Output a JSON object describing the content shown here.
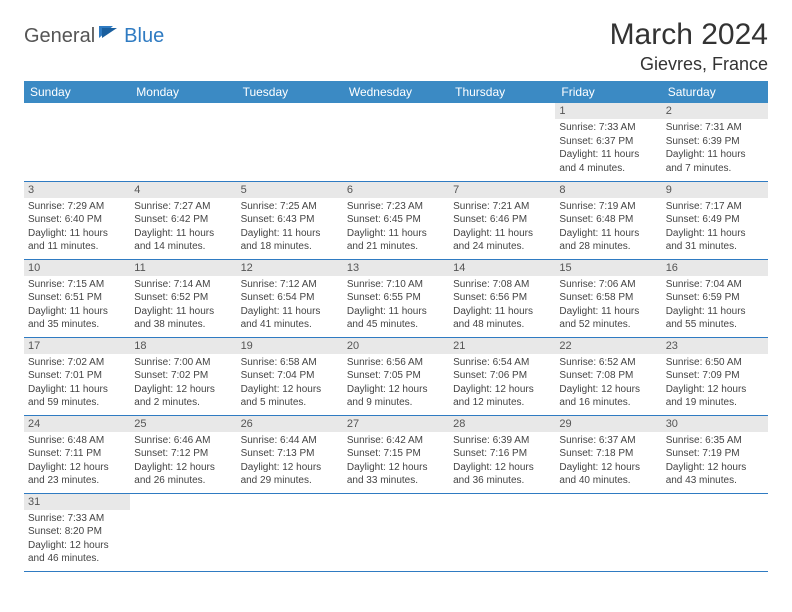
{
  "logo": {
    "part1": "General",
    "part2": "Blue"
  },
  "title": "March 2024",
  "location": "Gievres, France",
  "colors": {
    "header_bg": "#3b8ac4",
    "header_text": "#ffffff",
    "daynum_bg": "#e8e8e8",
    "row_border": "#2f7bc2",
    "title_color": "#333333",
    "body_text": "#444444"
  },
  "weekdays": [
    "Sunday",
    "Monday",
    "Tuesday",
    "Wednesday",
    "Thursday",
    "Friday",
    "Saturday"
  ],
  "weeks": [
    [
      {
        "empty": true
      },
      {
        "empty": true
      },
      {
        "empty": true
      },
      {
        "empty": true
      },
      {
        "empty": true
      },
      {
        "num": "1",
        "sunrise": "Sunrise: 7:33 AM",
        "sunset": "Sunset: 6:37 PM",
        "daylight": "Daylight: 11 hours and 4 minutes."
      },
      {
        "num": "2",
        "sunrise": "Sunrise: 7:31 AM",
        "sunset": "Sunset: 6:39 PM",
        "daylight": "Daylight: 11 hours and 7 minutes."
      }
    ],
    [
      {
        "num": "3",
        "sunrise": "Sunrise: 7:29 AM",
        "sunset": "Sunset: 6:40 PM",
        "daylight": "Daylight: 11 hours and 11 minutes."
      },
      {
        "num": "4",
        "sunrise": "Sunrise: 7:27 AM",
        "sunset": "Sunset: 6:42 PM",
        "daylight": "Daylight: 11 hours and 14 minutes."
      },
      {
        "num": "5",
        "sunrise": "Sunrise: 7:25 AM",
        "sunset": "Sunset: 6:43 PM",
        "daylight": "Daylight: 11 hours and 18 minutes."
      },
      {
        "num": "6",
        "sunrise": "Sunrise: 7:23 AM",
        "sunset": "Sunset: 6:45 PM",
        "daylight": "Daylight: 11 hours and 21 minutes."
      },
      {
        "num": "7",
        "sunrise": "Sunrise: 7:21 AM",
        "sunset": "Sunset: 6:46 PM",
        "daylight": "Daylight: 11 hours and 24 minutes."
      },
      {
        "num": "8",
        "sunrise": "Sunrise: 7:19 AM",
        "sunset": "Sunset: 6:48 PM",
        "daylight": "Daylight: 11 hours and 28 minutes."
      },
      {
        "num": "9",
        "sunrise": "Sunrise: 7:17 AM",
        "sunset": "Sunset: 6:49 PM",
        "daylight": "Daylight: 11 hours and 31 minutes."
      }
    ],
    [
      {
        "num": "10",
        "sunrise": "Sunrise: 7:15 AM",
        "sunset": "Sunset: 6:51 PM",
        "daylight": "Daylight: 11 hours and 35 minutes."
      },
      {
        "num": "11",
        "sunrise": "Sunrise: 7:14 AM",
        "sunset": "Sunset: 6:52 PM",
        "daylight": "Daylight: 11 hours and 38 minutes."
      },
      {
        "num": "12",
        "sunrise": "Sunrise: 7:12 AM",
        "sunset": "Sunset: 6:54 PM",
        "daylight": "Daylight: 11 hours and 41 minutes."
      },
      {
        "num": "13",
        "sunrise": "Sunrise: 7:10 AM",
        "sunset": "Sunset: 6:55 PM",
        "daylight": "Daylight: 11 hours and 45 minutes."
      },
      {
        "num": "14",
        "sunrise": "Sunrise: 7:08 AM",
        "sunset": "Sunset: 6:56 PM",
        "daylight": "Daylight: 11 hours and 48 minutes."
      },
      {
        "num": "15",
        "sunrise": "Sunrise: 7:06 AM",
        "sunset": "Sunset: 6:58 PM",
        "daylight": "Daylight: 11 hours and 52 minutes."
      },
      {
        "num": "16",
        "sunrise": "Sunrise: 7:04 AM",
        "sunset": "Sunset: 6:59 PM",
        "daylight": "Daylight: 11 hours and 55 minutes."
      }
    ],
    [
      {
        "num": "17",
        "sunrise": "Sunrise: 7:02 AM",
        "sunset": "Sunset: 7:01 PM",
        "daylight": "Daylight: 11 hours and 59 minutes."
      },
      {
        "num": "18",
        "sunrise": "Sunrise: 7:00 AM",
        "sunset": "Sunset: 7:02 PM",
        "daylight": "Daylight: 12 hours and 2 minutes."
      },
      {
        "num": "19",
        "sunrise": "Sunrise: 6:58 AM",
        "sunset": "Sunset: 7:04 PM",
        "daylight": "Daylight: 12 hours and 5 minutes."
      },
      {
        "num": "20",
        "sunrise": "Sunrise: 6:56 AM",
        "sunset": "Sunset: 7:05 PM",
        "daylight": "Daylight: 12 hours and 9 minutes."
      },
      {
        "num": "21",
        "sunrise": "Sunrise: 6:54 AM",
        "sunset": "Sunset: 7:06 PM",
        "daylight": "Daylight: 12 hours and 12 minutes."
      },
      {
        "num": "22",
        "sunrise": "Sunrise: 6:52 AM",
        "sunset": "Sunset: 7:08 PM",
        "daylight": "Daylight: 12 hours and 16 minutes."
      },
      {
        "num": "23",
        "sunrise": "Sunrise: 6:50 AM",
        "sunset": "Sunset: 7:09 PM",
        "daylight": "Daylight: 12 hours and 19 minutes."
      }
    ],
    [
      {
        "num": "24",
        "sunrise": "Sunrise: 6:48 AM",
        "sunset": "Sunset: 7:11 PM",
        "daylight": "Daylight: 12 hours and 23 minutes."
      },
      {
        "num": "25",
        "sunrise": "Sunrise: 6:46 AM",
        "sunset": "Sunset: 7:12 PM",
        "daylight": "Daylight: 12 hours and 26 minutes."
      },
      {
        "num": "26",
        "sunrise": "Sunrise: 6:44 AM",
        "sunset": "Sunset: 7:13 PM",
        "daylight": "Daylight: 12 hours and 29 minutes."
      },
      {
        "num": "27",
        "sunrise": "Sunrise: 6:42 AM",
        "sunset": "Sunset: 7:15 PM",
        "daylight": "Daylight: 12 hours and 33 minutes."
      },
      {
        "num": "28",
        "sunrise": "Sunrise: 6:39 AM",
        "sunset": "Sunset: 7:16 PM",
        "daylight": "Daylight: 12 hours and 36 minutes."
      },
      {
        "num": "29",
        "sunrise": "Sunrise: 6:37 AM",
        "sunset": "Sunset: 7:18 PM",
        "daylight": "Daylight: 12 hours and 40 minutes."
      },
      {
        "num": "30",
        "sunrise": "Sunrise: 6:35 AM",
        "sunset": "Sunset: 7:19 PM",
        "daylight": "Daylight: 12 hours and 43 minutes."
      }
    ],
    [
      {
        "num": "31",
        "sunrise": "Sunrise: 7:33 AM",
        "sunset": "Sunset: 8:20 PM",
        "daylight": "Daylight: 12 hours and 46 minutes."
      },
      {
        "empty": true
      },
      {
        "empty": true
      },
      {
        "empty": true
      },
      {
        "empty": true
      },
      {
        "empty": true
      },
      {
        "empty": true
      }
    ]
  ]
}
